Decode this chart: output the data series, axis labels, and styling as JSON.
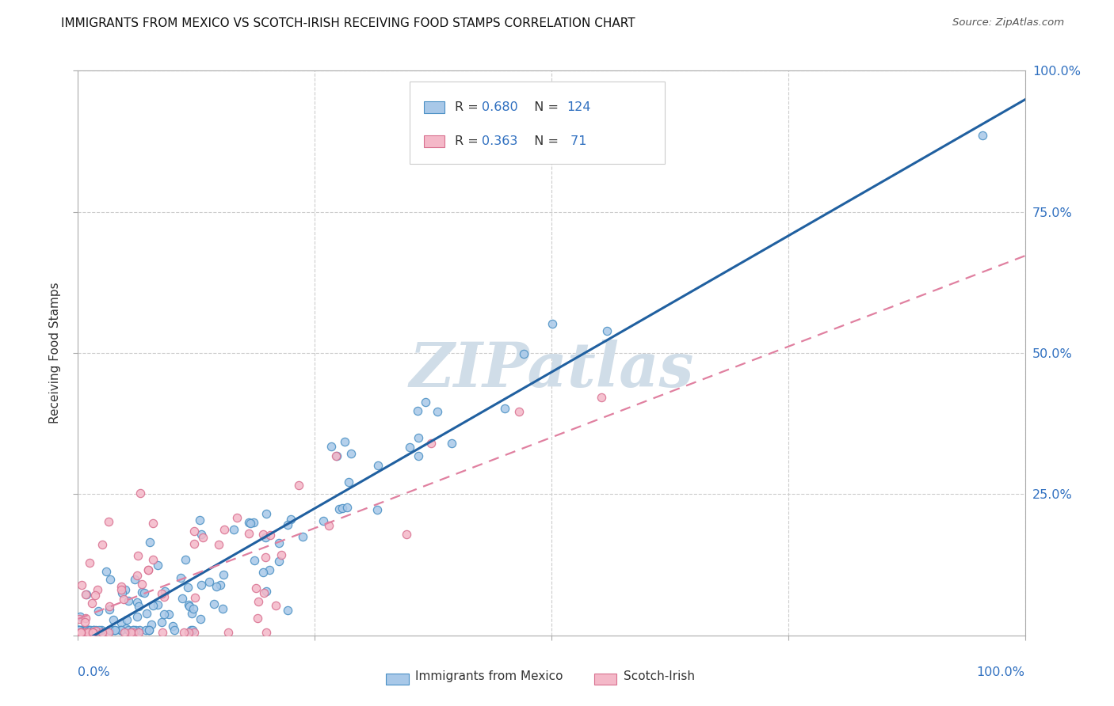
{
  "title": "IMMIGRANTS FROM MEXICO VS SCOTCH-IRISH RECEIVING FOOD STAMPS CORRELATION CHART",
  "source": "Source: ZipAtlas.com",
  "ylabel": "Receiving Food Stamps",
  "legend_label1": "Immigrants from Mexico",
  "legend_label2": "Scotch-Irish",
  "R1": 0.68,
  "N1": 124,
  "R2": 0.363,
  "N2": 71,
  "color_blue_fill": "#a8c8e8",
  "color_blue_edge": "#4a90c4",
  "color_pink_fill": "#f4b8c8",
  "color_pink_edge": "#d87090",
  "color_blue_line": "#2060a0",
  "color_pink_line": "#e080a0",
  "color_text_blue": "#3070c0",
  "color_text_dark": "#333333",
  "watermark_color": "#d0dde8",
  "background_color": "#ffffff",
  "grid_color": "#cccccc",
  "xlim": [
    0,
    1
  ],
  "ylim": [
    0,
    1
  ],
  "ytick_positions": [
    0.0,
    0.25,
    0.5,
    0.75,
    1.0
  ],
  "ytick_labels": [
    "",
    "25.0%",
    "50.0%",
    "75.0%",
    "100.0%"
  ],
  "seed1": 42,
  "seed2": 99
}
